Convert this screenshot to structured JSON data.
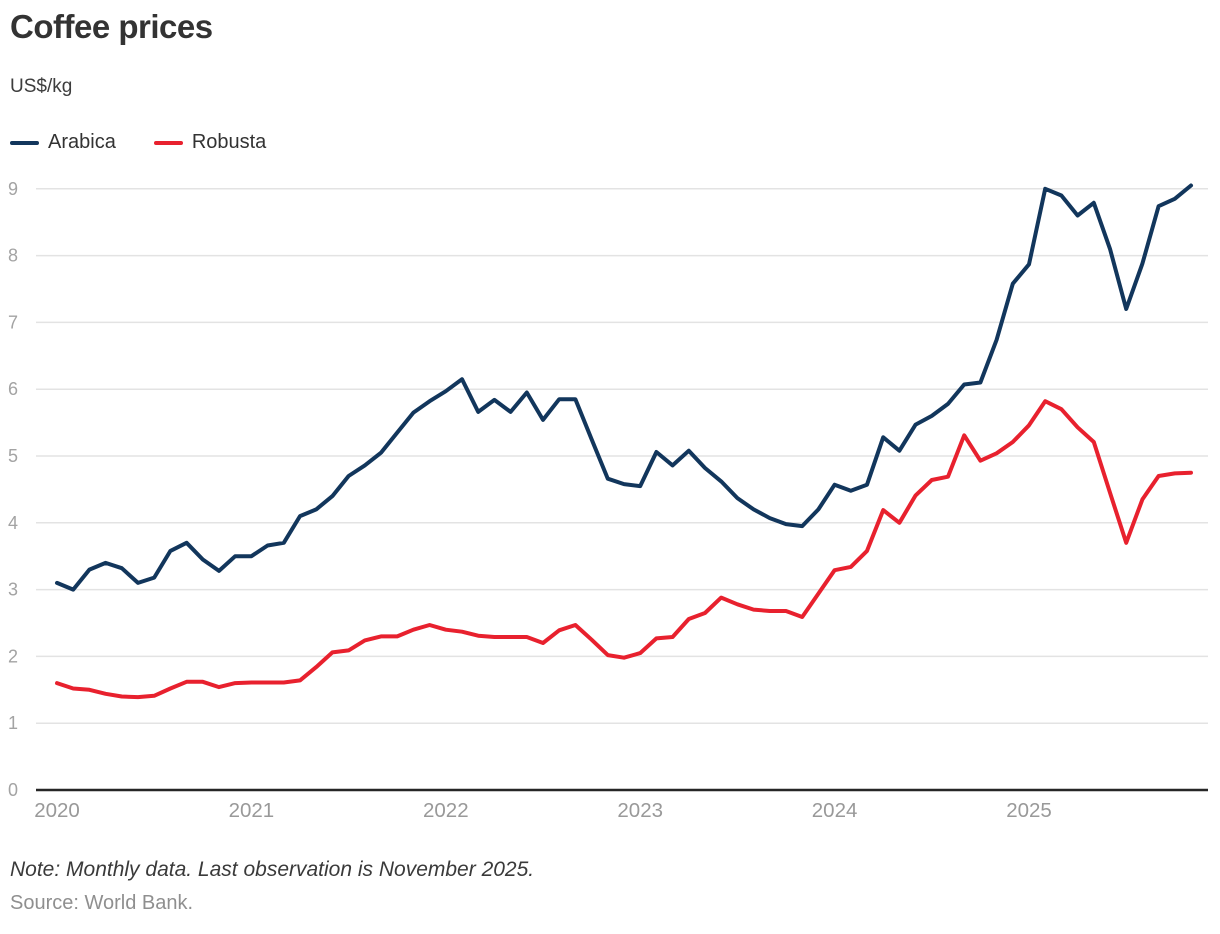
{
  "header": {
    "title": "Coffee prices",
    "subtitle": "US$/kg"
  },
  "note": "Note: Monthly data. Last observation is November 2025.",
  "source": "Source: World Bank.",
  "colors": {
    "arabica": "#12365c",
    "robusta": "#e8212e",
    "gridline": "#e3e3e3",
    "axis": "#262626",
    "tick_label": "#a3a3a3",
    "year_label": "#999999"
  },
  "chart_data": {
    "type": "line",
    "title": "Coffee prices",
    "ylabel": "US$/kg",
    "frequency": "monthly",
    "x_start": "2020-01",
    "x_end": "2025-11",
    "ylim": [
      0,
      9
    ],
    "y_ticks": [
      0,
      1,
      2,
      3,
      4,
      5,
      6,
      7,
      8,
      9
    ],
    "x_tick_labels": [
      "2020",
      "2021",
      "2022",
      "2023",
      "2024",
      "2025"
    ],
    "grid": "horizontal",
    "legend_position": "top-left",
    "series": [
      {
        "name": "Arabica",
        "color": "#12365c",
        "values": [
          3.1,
          3.0,
          3.3,
          3.4,
          3.32,
          3.1,
          3.18,
          3.58,
          3.7,
          3.45,
          3.28,
          3.5,
          3.5,
          3.66,
          3.7,
          4.1,
          4.2,
          4.4,
          4.7,
          4.86,
          5.05,
          5.35,
          5.65,
          5.82,
          5.97,
          6.15,
          5.66,
          5.84,
          5.66,
          5.95,
          5.54,
          5.85,
          5.85,
          5.25,
          4.66,
          4.58,
          4.55,
          5.06,
          4.86,
          5.08,
          4.82,
          4.62,
          4.37,
          4.2,
          4.07,
          3.98,
          3.95,
          4.2,
          4.57,
          4.48,
          4.57,
          5.28,
          5.08,
          5.47,
          5.6,
          5.78,
          6.07,
          6.1,
          6.74,
          7.58,
          7.87,
          9.0,
          8.9,
          8.6,
          8.79,
          8.1,
          7.2,
          7.88,
          8.74,
          8.85,
          9.05
        ]
      },
      {
        "name": "Robusta",
        "color": "#e8212e",
        "values": [
          1.6,
          1.52,
          1.5,
          1.44,
          1.4,
          1.39,
          1.41,
          1.52,
          1.62,
          1.62,
          1.54,
          1.6,
          1.61,
          1.61,
          1.61,
          1.64,
          1.84,
          2.06,
          2.09,
          2.24,
          2.3,
          2.3,
          2.4,
          2.47,
          2.4,
          2.37,
          2.31,
          2.29,
          2.29,
          2.29,
          2.2,
          2.39,
          2.47,
          2.25,
          2.02,
          1.98,
          2.05,
          2.27,
          2.29,
          2.56,
          2.65,
          2.88,
          2.78,
          2.7,
          2.68,
          2.68,
          2.59,
          2.94,
          3.29,
          3.34,
          3.58,
          4.19,
          4.0,
          4.41,
          4.64,
          4.69,
          5.31,
          4.93,
          5.04,
          5.21,
          5.46,
          5.82,
          5.7,
          5.43,
          5.21,
          4.45,
          3.7,
          4.35,
          4.7,
          4.74,
          4.75
        ]
      }
    ]
  }
}
